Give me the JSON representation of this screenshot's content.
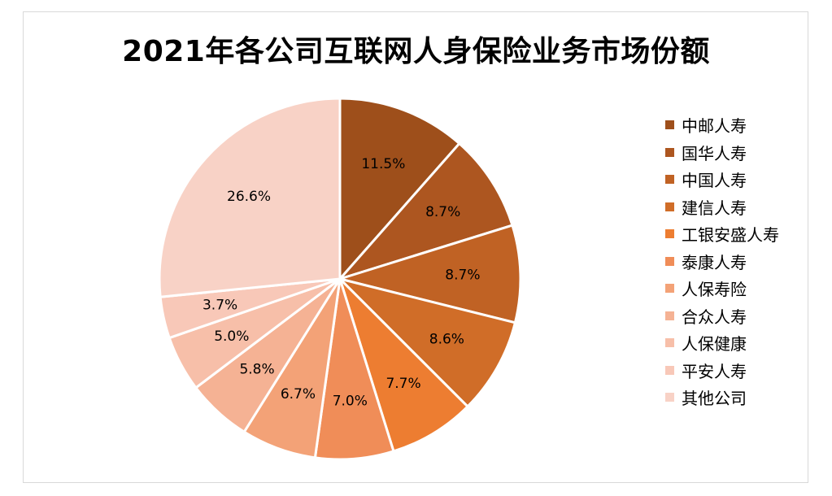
{
  "chart_data": {
    "type": "pie",
    "title": "2021年各公司互联网人身保险业务市场份额",
    "categories": [
      "中邮人寿",
      "国华人寿",
      "中国人寿",
      "建信人寿",
      "工银安盛人寿",
      "泰康人寿",
      "人保寿险",
      "合众人寿",
      "人保健康",
      "平安人寿",
      "其他公司"
    ],
    "values": [
      11.5,
      8.7,
      8.7,
      8.6,
      7.7,
      7.0,
      6.7,
      5.8,
      5.0,
      3.7,
      26.6
    ],
    "labels": [
      "11.5%",
      "8.7%",
      "8.7%",
      "8.6%",
      "7.7%",
      "7.0%",
      "6.7%",
      "5.8%",
      "5.0%",
      "3.7%",
      "26.6%"
    ],
    "unit": "%",
    "colors": [
      "#9e4f1b",
      "#ad5620",
      "#c06224",
      "#d06d28",
      "#ed7d31",
      "#f08d58",
      "#f3a277",
      "#f5b294",
      "#f7bfa9",
      "#f8c8b8",
      "#f8d2c6"
    ],
    "legend": "right",
    "start_angle": "12 o'clock",
    "direction": "clockwise"
  }
}
